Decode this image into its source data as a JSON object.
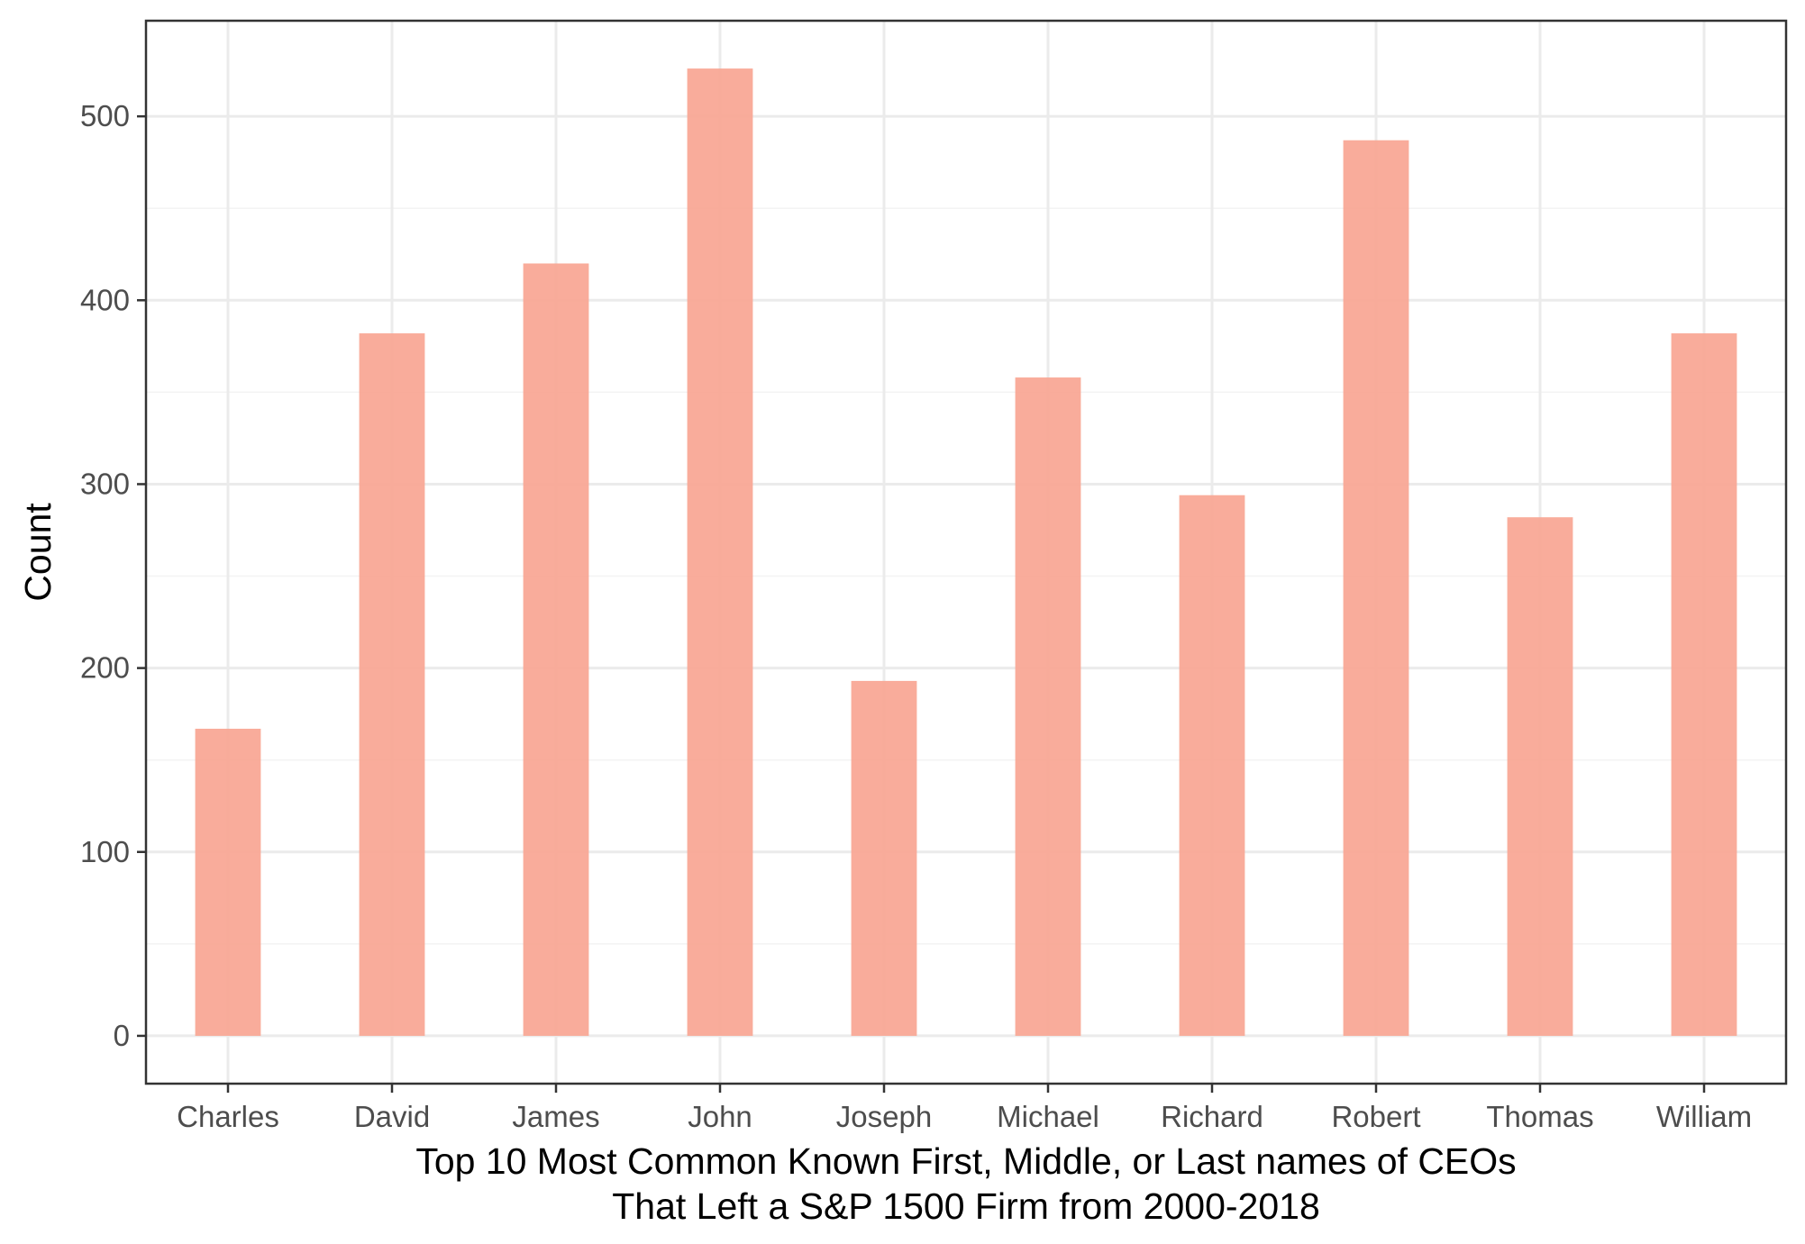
{
  "chart_data": {
    "type": "bar",
    "categories": [
      "Charles",
      "David",
      "James",
      "John",
      "Joseph",
      "Michael",
      "Richard",
      "Robert",
      "Thomas",
      "William"
    ],
    "values": [
      167,
      382,
      420,
      526,
      193,
      358,
      294,
      487,
      282,
      382
    ],
    "title": "",
    "xlabel_lines": [
      "Top 10 Most Common Known First, Middle, or Last names of CEOs",
      "That Left a S&P 1500 Firm from 2000-2018"
    ],
    "ylabel": "Count",
    "ylim": [
      -26,
      552
    ],
    "yticks": [
      0,
      100,
      200,
      300,
      400,
      500
    ],
    "ytick_labels": [
      "0",
      "100",
      "200",
      "300",
      "400",
      "500"
    ],
    "grid": true,
    "legend": "none",
    "colors": {
      "bar": "#f8a592",
      "grid_major": "#ebebeb",
      "grid_minor": "#f3f3f3",
      "panel_border": "#333333"
    }
  }
}
